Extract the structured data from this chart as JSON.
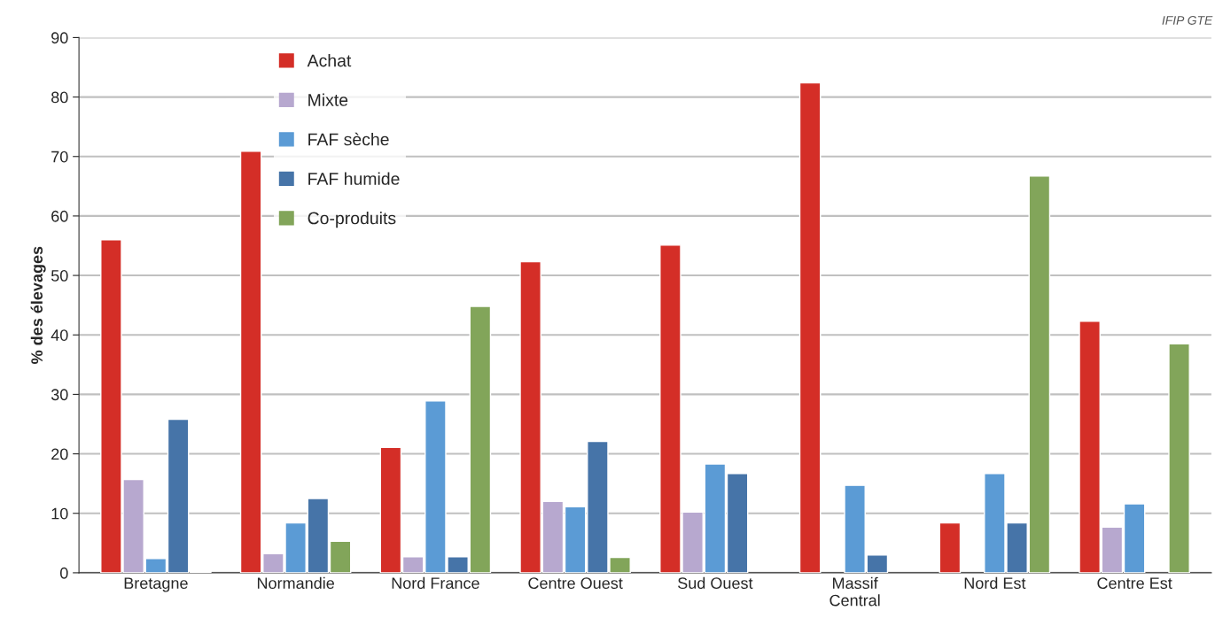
{
  "chart_data": {
    "type": "bar",
    "ylabel": "% des élevages",
    "categories": [
      "Bretagne",
      "Normandie",
      "Nord France",
      "Centre Ouest",
      "Sud Ouest",
      "Massif\nCentral",
      "Nord Est",
      "Centre Est"
    ],
    "series": [
      {
        "name": "Achat",
        "color": "#d42e27",
        "values": [
          56.0,
          70.9,
          21.1,
          52.3,
          55.1,
          82.4,
          8.4,
          42.3
        ]
      },
      {
        "name": "Mixte",
        "color": "#b7a8cf",
        "values": [
          15.7,
          3.2,
          2.7,
          12.0,
          10.2,
          null,
          null,
          7.7
        ]
      },
      {
        "name": "FAF sèche",
        "color": "#5b9bd5",
        "values": [
          2.4,
          8.4,
          28.9,
          11.1,
          18.3,
          14.7,
          16.7,
          11.6
        ]
      },
      {
        "name": "FAF humide",
        "color": "#4674a8",
        "values": [
          25.8,
          12.5,
          2.7,
          22.1,
          16.7,
          3.0,
          8.4,
          null
        ]
      },
      {
        "name": "Co-produits",
        "color": "#82a55a",
        "values": [
          0.2,
          5.3,
          44.8,
          2.6,
          null,
          null,
          66.7,
          38.5
        ]
      }
    ],
    "ylim": [
      0,
      90
    ],
    "yticks": [
      0,
      10,
      20,
      30,
      40,
      50,
      60,
      70,
      80,
      90
    ],
    "grid": "y",
    "legend": "top left",
    "annotations": [
      "IFIP GTE"
    ]
  }
}
